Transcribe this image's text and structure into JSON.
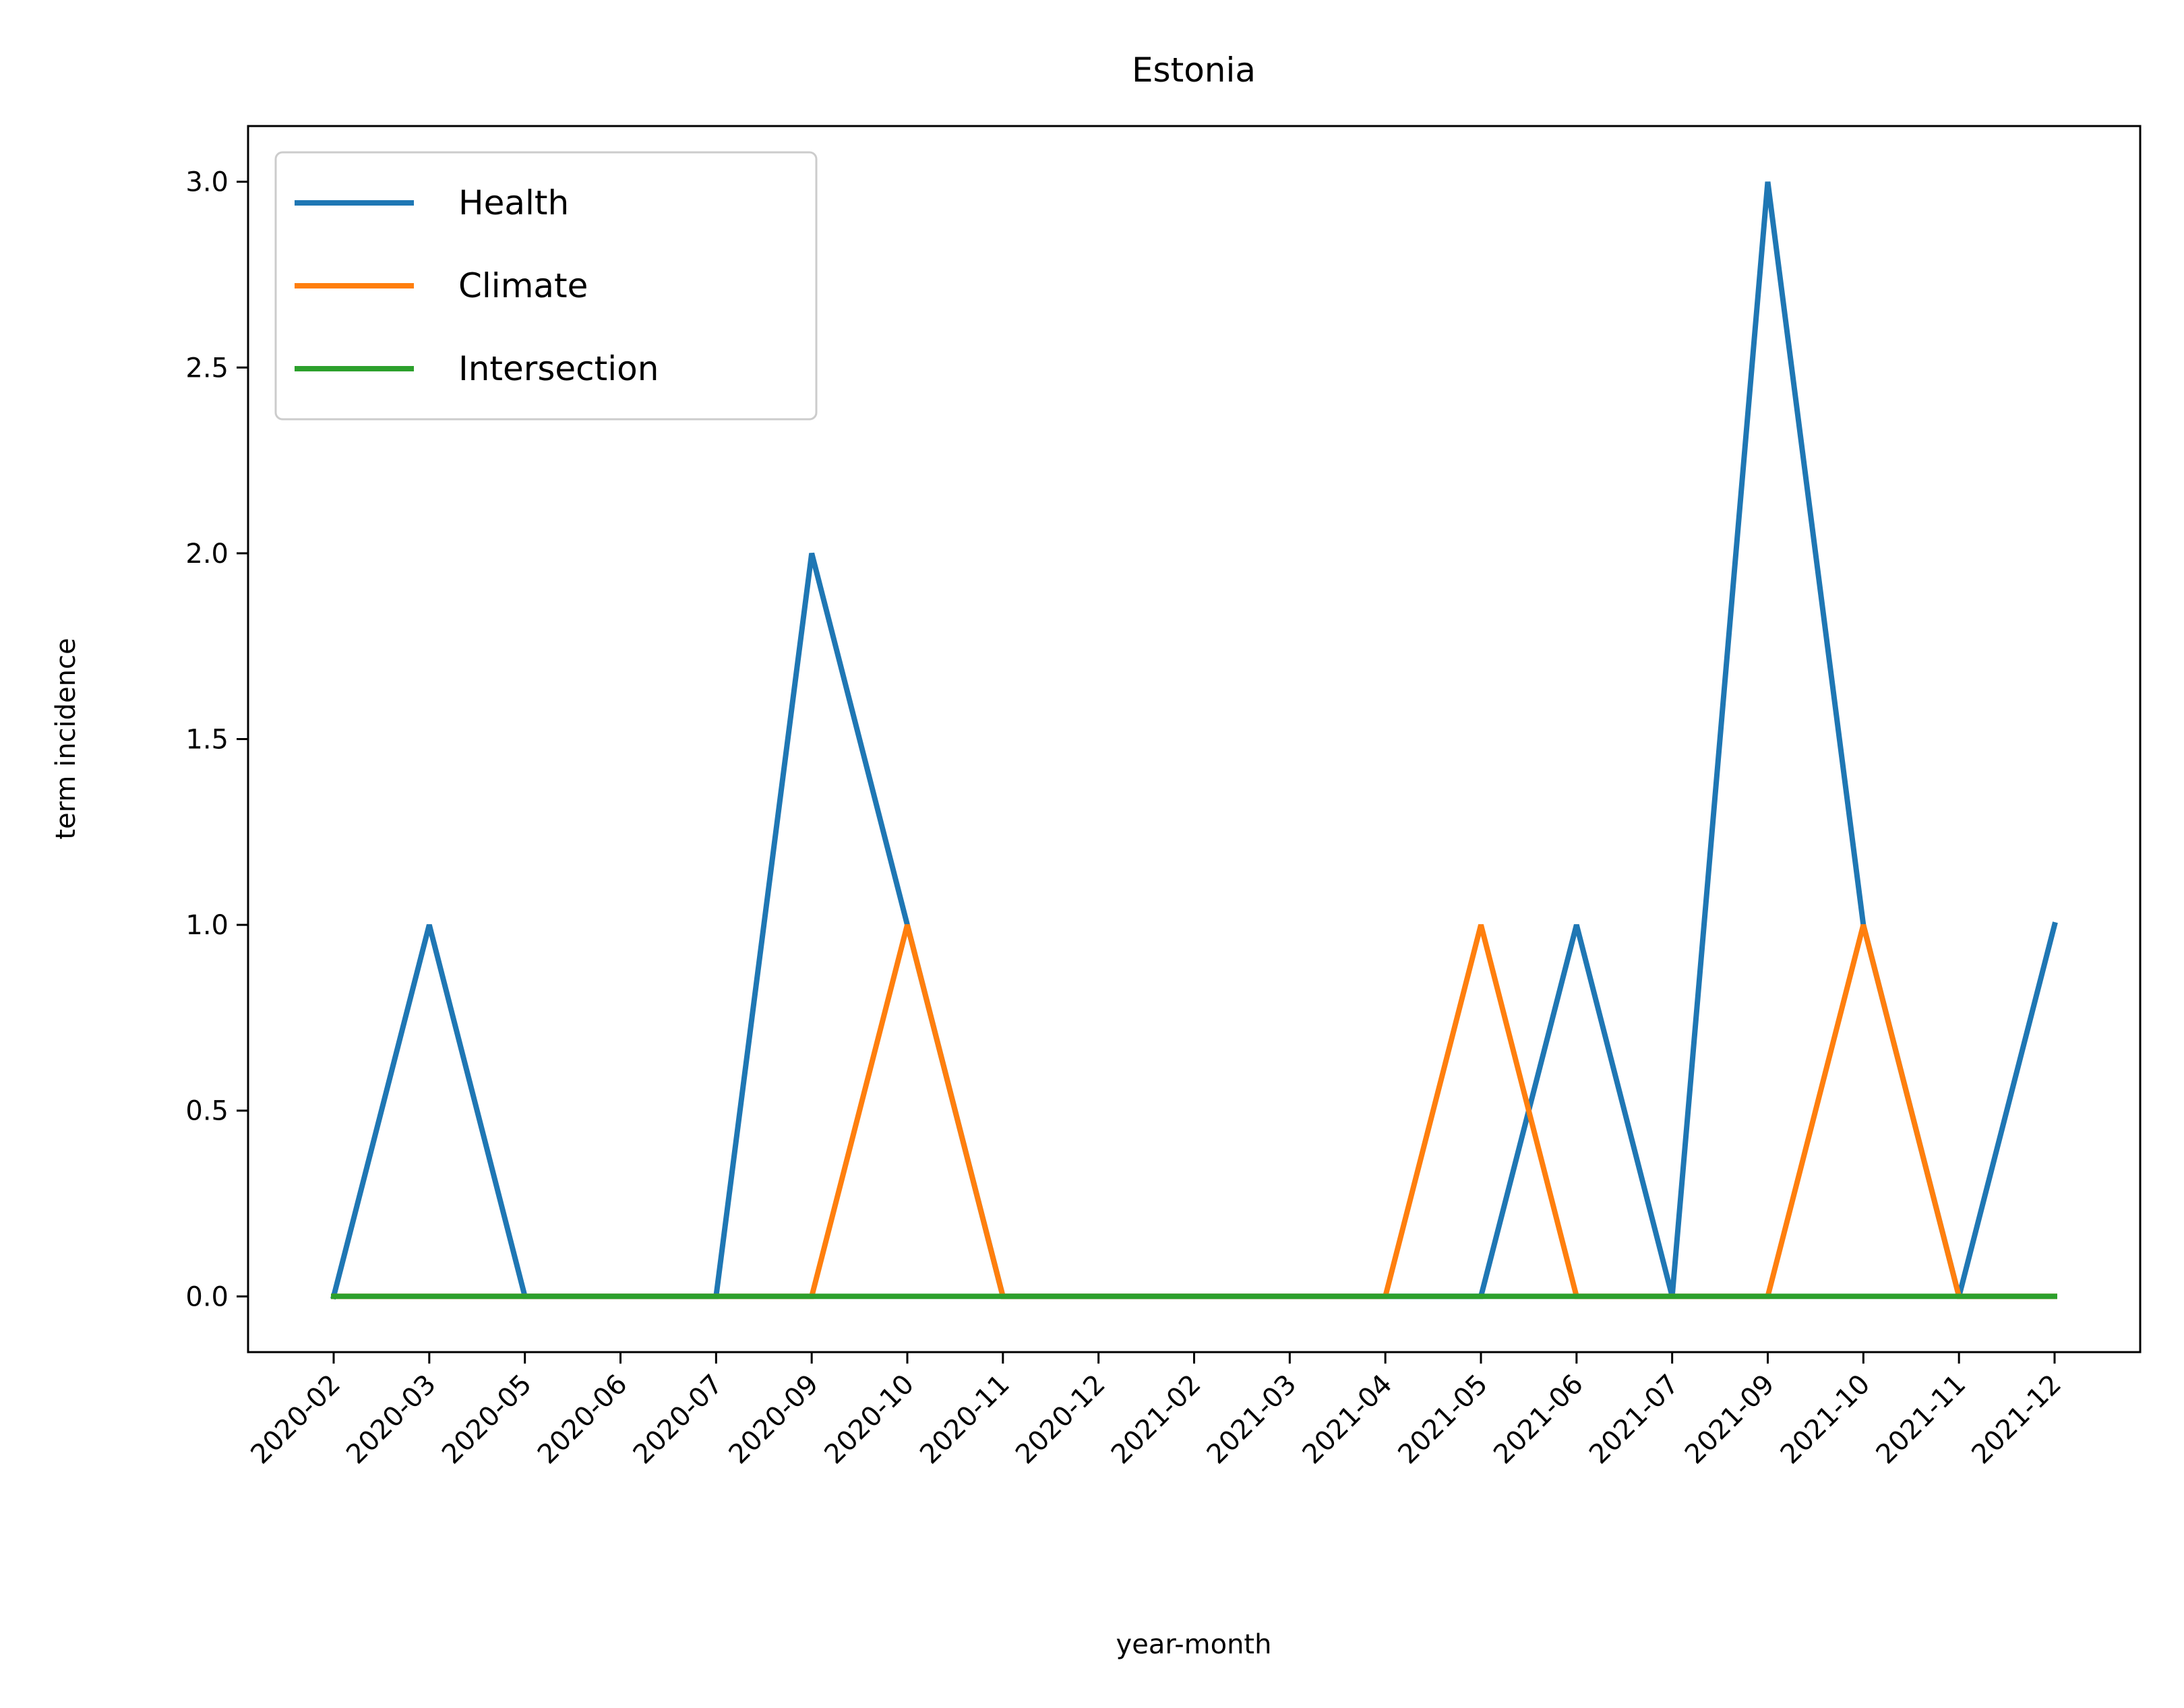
{
  "chart_data": {
    "type": "line",
    "title": "Estonia",
    "xlabel": "year-month",
    "ylabel": "term incidence",
    "categories": [
      "2020-02",
      "2020-03",
      "2020-05",
      "2020-06",
      "2020-07",
      "2020-09",
      "2020-10",
      "2020-11",
      "2020-12",
      "2021-02",
      "2021-03",
      "2021-04",
      "2021-05",
      "2021-06",
      "2021-07",
      "2021-09",
      "2021-10",
      "2021-11",
      "2021-12"
    ],
    "series": [
      {
        "name": "Health",
        "color": "#1f77b4",
        "values": [
          0,
          1,
          0,
          0,
          0,
          2,
          1,
          0,
          0,
          0,
          0,
          0,
          0,
          1,
          0,
          3,
          1,
          0,
          1
        ]
      },
      {
        "name": "Climate",
        "color": "#ff7f0e",
        "values": [
          0,
          0,
          0,
          0,
          0,
          0,
          1,
          0,
          0,
          0,
          0,
          0,
          1,
          0,
          0,
          0,
          1,
          0,
          0
        ]
      },
      {
        "name": "Intersection",
        "color": "#2ca02c",
        "values": [
          0,
          0,
          0,
          0,
          0,
          0,
          0,
          0,
          0,
          0,
          0,
          0,
          0,
          0,
          0,
          0,
          0,
          0,
          0
        ]
      }
    ],
    "ylim": [
      -0.15,
      3.15
    ],
    "yticks": [
      "0.0",
      "0.5",
      "1.0",
      "1.5",
      "2.0",
      "2.5",
      "3.0"
    ],
    "legend": "top-left",
    "grid": false
  }
}
